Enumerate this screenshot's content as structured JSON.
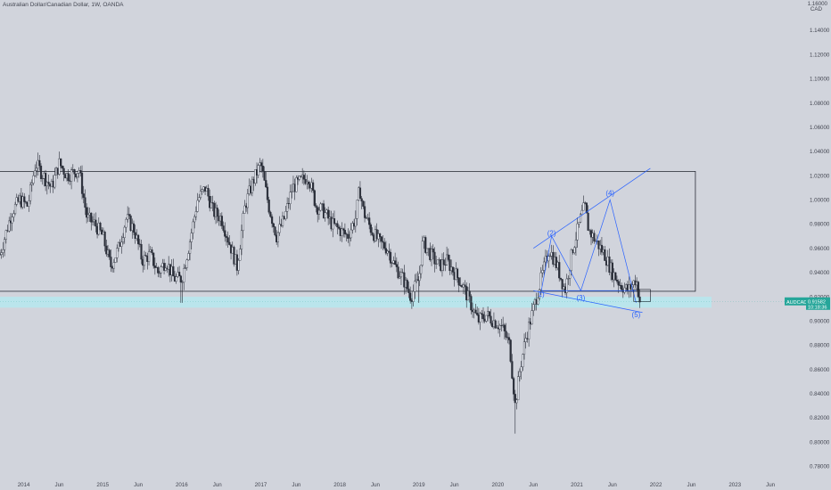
{
  "header": {
    "title": "Australian Dollar/Canadian Dollar, 1W, OANDA"
  },
  "colors": {
    "background": "#d1d4dc",
    "candle": "#2a2e39",
    "support_zone": "#b2ebf2",
    "drawing": "#2962ff",
    "box": "#131722",
    "price_badge": "#26a69a",
    "axis_text": "#434651"
  },
  "chart_data": {
    "type": "candlestick",
    "symbol": "AUDCAD",
    "exchange": "OANDA",
    "interval": "1W",
    "y_axis": {
      "currency_label": "CAD",
      "top_label": "1.16000",
      "ticks": [
        "1.14000",
        "1.12000",
        "1.10000",
        "1.08000",
        "1.06000",
        "1.04000",
        "1.02000",
        "1.00000",
        "0.98000",
        "0.96000",
        "0.94000",
        "0.92000",
        "0.90000",
        "0.88000",
        "0.86000",
        "0.84000",
        "0.82000",
        "0.80000",
        "0.78000"
      ],
      "tick_values": [
        1.14,
        1.12,
        1.1,
        1.08,
        1.06,
        1.04,
        1.02,
        1.0,
        0.98,
        0.96,
        0.94,
        0.92,
        0.9,
        0.88,
        0.86,
        0.84,
        0.82,
        0.8,
        0.78
      ],
      "range": [
        0.77,
        1.165
      ]
    },
    "x_axis": {
      "ticks": [
        "2014",
        "Jun",
        "2015",
        "Jun",
        "2016",
        "Jun",
        "2017",
        "Jun",
        "2018",
        "Jun",
        "2019",
        "Jun",
        "2020",
        "Jun",
        "2021",
        "Jun",
        "2022",
        "Jun",
        "2023",
        "Jun"
      ],
      "tick_times": [
        2014.0,
        2014.45,
        2015.0,
        2015.45,
        2016.0,
        2016.45,
        2017.0,
        2017.45,
        2018.0,
        2018.45,
        2019.0,
        2019.45,
        2020.0,
        2020.45,
        2021.0,
        2021.45,
        2022.0,
        2022.45,
        2023.0,
        2023.45
      ],
      "range": [
        2013.7,
        2023.9
      ]
    },
    "price_path": [
      [
        2013.7,
        0.955
      ],
      [
        2013.85,
        0.99
      ],
      [
        2013.95,
        1.0
      ],
      [
        2014.05,
        0.995
      ],
      [
        2014.15,
        1.03
      ],
      [
        2014.25,
        1.02
      ],
      [
        2014.35,
        1.01
      ],
      [
        2014.45,
        1.03
      ],
      [
        2014.55,
        1.02
      ],
      [
        2014.7,
        1.025
      ],
      [
        2014.8,
        0.985
      ],
      [
        2014.9,
        0.98
      ],
      [
        2015.0,
        0.97
      ],
      [
        2015.1,
        0.945
      ],
      [
        2015.2,
        0.96
      ],
      [
        2015.3,
        0.985
      ],
      [
        2015.4,
        0.975
      ],
      [
        2015.5,
        0.95
      ],
      [
        2015.6,
        0.955
      ],
      [
        2015.7,
        0.94
      ],
      [
        2015.8,
        0.95
      ],
      [
        2015.9,
        0.935
      ],
      [
        2016.0,
        0.935
      ],
      [
        2016.1,
        0.965
      ],
      [
        2016.2,
        1.0
      ],
      [
        2016.3,
        1.01
      ],
      [
        2016.4,
        0.99
      ],
      [
        2016.5,
        0.985
      ],
      [
        2016.6,
        0.965
      ],
      [
        2016.7,
        0.945
      ],
      [
        2016.8,
        0.995
      ],
      [
        2016.9,
        1.015
      ],
      [
        2017.0,
        1.03
      ],
      [
        2017.1,
        0.995
      ],
      [
        2017.2,
        0.97
      ],
      [
        2017.3,
        0.985
      ],
      [
        2017.4,
        1.01
      ],
      [
        2017.5,
        1.015
      ],
      [
        2017.6,
        1.02
      ],
      [
        2017.7,
        0.995
      ],
      [
        2017.8,
        0.99
      ],
      [
        2017.9,
        0.98
      ],
      [
        2018.0,
        0.975
      ],
      [
        2018.1,
        0.97
      ],
      [
        2018.2,
        0.985
      ],
      [
        2018.25,
        1.01
      ],
      [
        2018.3,
        0.99
      ],
      [
        2018.4,
        0.975
      ],
      [
        2018.5,
        0.965
      ],
      [
        2018.6,
        0.96
      ],
      [
        2018.7,
        0.945
      ],
      [
        2018.8,
        0.935
      ],
      [
        2018.9,
        0.92
      ],
      [
        2019.0,
        0.935
      ],
      [
        2019.05,
        0.965
      ],
      [
        2019.15,
        0.955
      ],
      [
        2019.25,
        0.945
      ],
      [
        2019.35,
        0.95
      ],
      [
        2019.45,
        0.94
      ],
      [
        2019.55,
        0.93
      ],
      [
        2019.65,
        0.915
      ],
      [
        2019.75,
        0.9
      ],
      [
        2019.85,
        0.905
      ],
      [
        2019.95,
        0.9
      ],
      [
        2020.05,
        0.895
      ],
      [
        2020.15,
        0.88
      ],
      [
        2020.22,
        0.83
      ],
      [
        2020.28,
        0.86
      ],
      [
        2020.35,
        0.885
      ],
      [
        2020.45,
        0.91
      ],
      [
        2020.55,
        0.935
      ],
      [
        2020.65,
        0.96
      ],
      [
        2020.75,
        0.945
      ],
      [
        2020.85,
        0.925
      ],
      [
        2020.95,
        0.96
      ],
      [
        2021.05,
        0.985
      ],
      [
        2021.1,
        0.995
      ],
      [
        2021.15,
        0.975
      ],
      [
        2021.25,
        0.965
      ],
      [
        2021.35,
        0.955
      ],
      [
        2021.45,
        0.94
      ],
      [
        2021.55,
        0.93
      ],
      [
        2021.65,
        0.925
      ],
      [
        2021.75,
        0.935
      ],
      [
        2021.8,
        0.915
      ]
    ],
    "last_price": 0.9158,
    "price_badge": {
      "symbol": "AUDCAD",
      "value": "0.91582",
      "countdown": "10:18:36"
    },
    "range_box": {
      "x": [
        2013.7,
        2022.5
      ],
      "y": [
        0.9245,
        1.0235
      ]
    },
    "support_zone": {
      "y": [
        0.911,
        0.92
      ]
    },
    "wave_labels": [
      {
        "text": "1)",
        "t": 2020.55,
        "p": 0.92
      },
      {
        "text": "(2)",
        "t": 2020.68,
        "p": 0.9705
      },
      {
        "text": "(3)",
        "t": 2021.05,
        "p": 0.917
      },
      {
        "text": "(4)",
        "t": 2021.42,
        "p": 1.0035
      },
      {
        "text": "(5)",
        "t": 2021.75,
        "p": 0.903
      }
    ],
    "wave_lines": [
      [
        [
          2020.55,
          0.925
        ],
        [
          2020.68,
          0.97
        ],
        [
          2021.05,
          0.925
        ],
        [
          2021.42,
          1.0
        ],
        [
          2021.75,
          0.915
        ]
      ],
      [
        [
          2020.45,
          0.96
        ],
        [
          2021.93,
          1.026
        ]
      ],
      [
        [
          2020.45,
          0.925
        ],
        [
          2021.83,
          0.907
        ]
      ],
      [
        [
          2020.55,
          0.925
        ],
        [
          2021.75,
          0.925
        ]
      ]
    ],
    "small_box": {
      "x": [
        2021.72,
        2021.93
      ],
      "y": [
        0.916,
        0.926
      ]
    }
  }
}
